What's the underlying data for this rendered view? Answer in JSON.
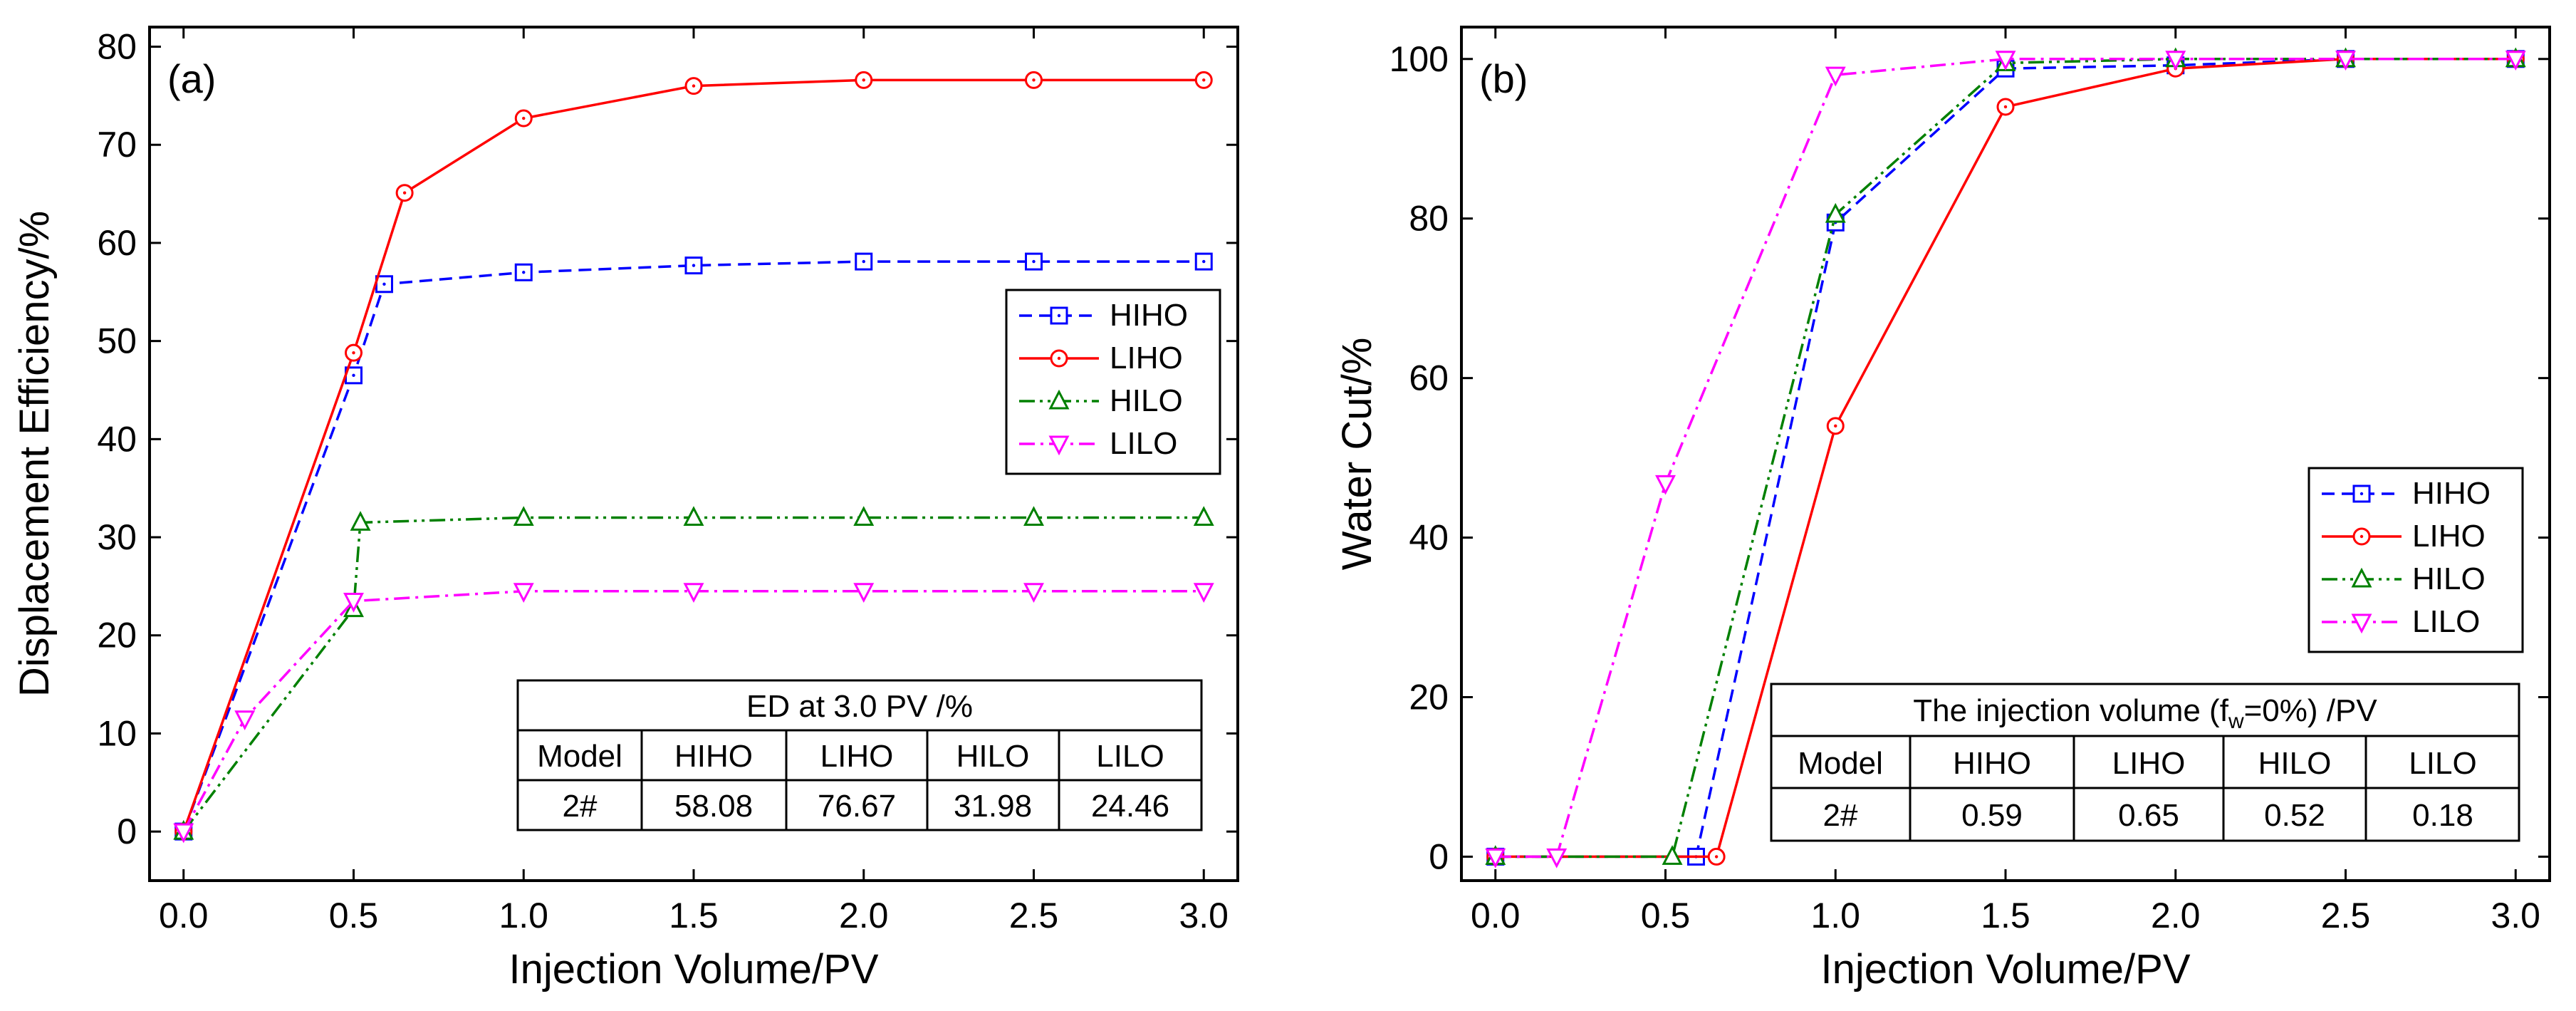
{
  "chart_data": [
    {
      "type": "line",
      "panel_label": "(a)",
      "xlabel": "Injection Volume/PV",
      "ylabel": "Displacement Efficiency/%",
      "xlim": [
        -0.1,
        3.1
      ],
      "ylim": [
        -5,
        82
      ],
      "xticks": [
        0.0,
        0.5,
        1.0,
        1.5,
        2.0,
        2.5,
        3.0
      ],
      "xtick_labels": [
        "0.0",
        "0.5",
        "1.0",
        "1.5",
        "2.0",
        "2.5",
        "3.0"
      ],
      "yticks": [
        0,
        10,
        20,
        30,
        40,
        50,
        60,
        70,
        80
      ],
      "ytick_labels": [
        "0",
        "10",
        "20",
        "30",
        "40",
        "50",
        "60",
        "70",
        "80"
      ],
      "grid": false,
      "legend_position": "right-middle",
      "series": [
        {
          "name": "HIHO",
          "color": "#0000ff",
          "dash": "dashed",
          "marker": "square",
          "points": [
            [
              0,
              0
            ],
            [
              0.5,
              46.5
            ],
            [
              0.59,
              55.8
            ],
            [
              1.0,
              57.0
            ],
            [
              1.5,
              57.7
            ],
            [
              2.0,
              58.1
            ],
            [
              2.5,
              58.1
            ],
            [
              3.0,
              58.1
            ]
          ]
        },
        {
          "name": "LIHO",
          "color": "#ff0000",
          "dash": "solid",
          "marker": "circle",
          "points": [
            [
              0,
              0
            ],
            [
              0.5,
              48.8
            ],
            [
              0.65,
              65.1
            ],
            [
              1.0,
              72.7
            ],
            [
              1.5,
              76.0
            ],
            [
              2.0,
              76.6
            ],
            [
              2.5,
              76.6
            ],
            [
              3.0,
              76.6
            ]
          ]
        },
        {
          "name": "HILO",
          "color": "#008000",
          "dash": "dashdotdot",
          "marker": "triangle-up",
          "points": [
            [
              0,
              0
            ],
            [
              0.5,
              22.7
            ],
            [
              0.52,
              31.5
            ],
            [
              1.0,
              32.0
            ],
            [
              1.5,
              32.0
            ],
            [
              2.0,
              32.0
            ],
            [
              2.5,
              32.0
            ],
            [
              3.0,
              32.0
            ]
          ]
        },
        {
          "name": "LILO",
          "color": "#ff00ff",
          "dash": "dashdot",
          "marker": "triangle-down",
          "points": [
            [
              0,
              0
            ],
            [
              0.18,
              11.5
            ],
            [
              0.5,
              23.5
            ],
            [
              1.0,
              24.5
            ],
            [
              1.5,
              24.5
            ],
            [
              2.0,
              24.5
            ],
            [
              2.5,
              24.5
            ],
            [
              3.0,
              24.5
            ]
          ]
        }
      ],
      "table": {
        "title": "ED at 3.0 PV /%",
        "headers": [
          "Model",
          "HIHO",
          "LIHO",
          "HILO",
          "LILO"
        ],
        "row": [
          "2#",
          "58.08",
          "76.67",
          "31.98",
          "24.46"
        ]
      }
    },
    {
      "type": "line",
      "panel_label": "(b)",
      "xlabel": "Injection Volume/PV",
      "ylabel": "Water Cut/%",
      "xlim": [
        -0.1,
        3.1
      ],
      "ylim": [
        -3,
        104
      ],
      "xticks": [
        0.0,
        0.5,
        1.0,
        1.5,
        2.0,
        2.5,
        3.0
      ],
      "xtick_labels": [
        "0.0",
        "0.5",
        "1.0",
        "1.5",
        "2.0",
        "2.5",
        "3.0"
      ],
      "yticks": [
        0,
        20,
        40,
        60,
        80,
        100
      ],
      "ytick_labels": [
        "0",
        "20",
        "40",
        "60",
        "80",
        "100"
      ],
      "grid": false,
      "legend_position": "right-middle",
      "series": [
        {
          "name": "HIHO",
          "color": "#0000ff",
          "dash": "dashed",
          "marker": "square",
          "points": [
            [
              0,
              0
            ],
            [
              0.59,
              0
            ],
            [
              1.0,
              79.5
            ],
            [
              1.5,
              98.8
            ],
            [
              2.0,
              99.2
            ],
            [
              2.5,
              100
            ],
            [
              3.0,
              100
            ]
          ]
        },
        {
          "name": "LIHO",
          "color": "#ff0000",
          "dash": "solid",
          "marker": "circle",
          "points": [
            [
              0,
              0
            ],
            [
              0.65,
              0
            ],
            [
              1.0,
              54.0
            ],
            [
              1.5,
              94.0
            ],
            [
              2.0,
              98.8
            ],
            [
              2.5,
              100
            ],
            [
              3.0,
              100
            ]
          ]
        },
        {
          "name": "HILO",
          "color": "#008000",
          "dash": "dashdotdot",
          "marker": "triangle-up",
          "points": [
            [
              0,
              0
            ],
            [
              0.52,
              0
            ],
            [
              1.0,
              80.5
            ],
            [
              1.5,
              99.5
            ],
            [
              2.0,
              100
            ],
            [
              2.5,
              100
            ],
            [
              3.0,
              100
            ]
          ]
        },
        {
          "name": "LILO",
          "color": "#ff00ff",
          "dash": "dashdot",
          "marker": "triangle-down",
          "points": [
            [
              0,
              0
            ],
            [
              0.18,
              0
            ],
            [
              0.5,
              46.8
            ],
            [
              1.0,
              98.0
            ],
            [
              1.5,
              100
            ],
            [
              2.0,
              100
            ],
            [
              2.5,
              100
            ],
            [
              3.0,
              100
            ]
          ]
        }
      ],
      "table": {
        "title_parts": [
          "The injection volume (f",
          "w",
          "=0%) /PV"
        ],
        "headers": [
          "Model",
          "HIHO",
          "LIHO",
          "HILO",
          "LILO"
        ],
        "row": [
          "2#",
          "0.59",
          "0.65",
          "0.52",
          "0.18"
        ]
      }
    }
  ]
}
